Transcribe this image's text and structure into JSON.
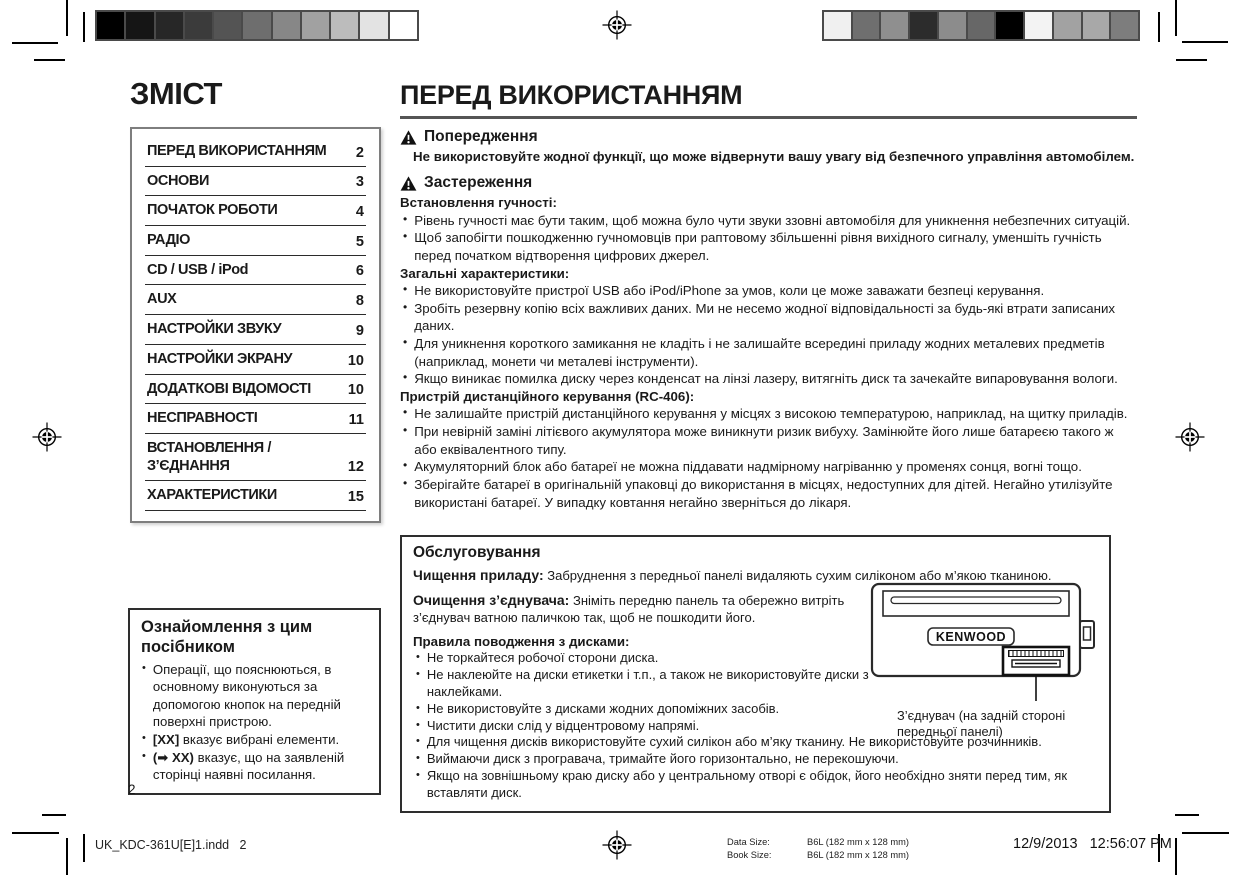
{
  "toc": {
    "title": "ЗМІСТ",
    "items": [
      {
        "label": "ПЕРЕД ВИКОРИСТАННЯМ",
        "page": "2"
      },
      {
        "label": "ОСНОВИ",
        "page": "3"
      },
      {
        "label": "ПОЧАТОК РОБОТИ",
        "page": "4"
      },
      {
        "label": "РАДІО",
        "page": "5"
      },
      {
        "label": "CD / USB / iPod",
        "page": "6"
      },
      {
        "label": "AUX",
        "page": "8"
      },
      {
        "label": "НАСТРОЙКИ ЗВУКУ",
        "page": "9"
      },
      {
        "label": "НАСТРОЙКИ ЭКРАНУ",
        "page": "10"
      },
      {
        "label": "ДОДАТКОВІ ВІДОМОСТІ",
        "page": "10"
      },
      {
        "label": "НЕСПРАВНОСТІ",
        "page": "11"
      },
      {
        "label": "ВСТАНОВЛЕННЯ /\nЗ’ЄДНАННЯ",
        "page": "12"
      },
      {
        "label": "ХАРАКТЕРИСТИКИ",
        "page": "15"
      }
    ]
  },
  "main": {
    "title": "ПЕРЕД ВИКОРИСТАННЯМ",
    "warning": {
      "heading": "Попередження",
      "body": "Не використовуйте жодної функції, що може відвернути вашу увагу від безпечного управління автомобілем."
    },
    "caution": {
      "heading": "Застереження",
      "groups": [
        {
          "heading": "Встановлення гучності:",
          "items": [
            "Рівень гучності має бути таким, щоб можна було чути звуки ззовні автомобіля для уникнення небезпечних ситуацій.",
            "Щоб запобігти пошкодженню гучномовців при раптовому збільшенні рівня вихідного сигналу, уменшіть гучність перед початком відтворення цифрових джерел."
          ]
        },
        {
          "heading": "Загальні характеристики:",
          "items": [
            "Не використовуйте пристрої USB або iPod/iPhone за умов, коли це може заважати безпеці керування.",
            "Зробіть резервну копію всіх важливих даних. Ми не несемо жодної відповідальності за будь-які втрати записаних даних.",
            "Для уникнення короткого замикання не кладіть і не залишайте всередині приладу жодних металевих предметів (наприклад, монети чи металеві інструменти).",
            "Якщо виникає помилка диску через конденсат на лінзі лазеру, витягніть диск та зачекайте випаровування вологи."
          ]
        },
        {
          "heading": "Пристрій дистанційного керування (RC-406):",
          "items": [
            "Не залишайте пристрій дистанційного керування у місцях з високою температурою, наприклад, на щитку приладів.",
            "При невірній заміні літієвого акумулятора може виникнути ризик вибуху. Замінюйте його лише батареєю такого ж або еквівалентного типу.",
            "Акумуляторний блок або батареї не можна піддавати надмірному нагріванню у променях сонця, вогні тощо.",
            "Зберігайте батареї в оригінальній упаковці до використання в місцях, недоступних для дітей. Негайно утилізуйте використані батареї. У випадку ковтання негайно зверніться до лікаря."
          ]
        }
      ]
    }
  },
  "maintenance": {
    "title": "Обслуговування",
    "cleaning_label": "Чищення приладу:",
    "cleaning_text": "Забруднення з передньої панелі видаляють сухим силіконом або м’якою тканиною.",
    "connector_label": "Очищення з’єднувача:",
    "connector_text": "Зніміть передню панель та обережно витріть з’єднувач ватною паличкою так, щоб не пошкодити його.",
    "discs_heading": "Правила поводження з дисками:",
    "disc_items_left": [
      "Не торкайтеся робочої сторони диска.",
      "Не наклеюйте на диски етикетки і т.п., а також не використовуйте диски з наклейками.",
      "Не використовуйте з дисками жодних допоміжних засобів.",
      "Чистити диски слід у відцентровому напрямі."
    ],
    "disc_items_full": [
      "Для чищення дисків використовуйте сухий силікон або м’яку тканину. Не використовуйте розчинників.",
      "Виймаючи диск з програвача, тримайте його горизонтально, не перекошуючи.",
      "Якщо на зовнішньому краю диску або у центральному отворі є обідок, його необхідно зняти перед тим, як вставляти диск."
    ],
    "device_brand": "KENWOOD",
    "device_caption": "З’єднувач (на задній стороні передньої панелі)"
  },
  "about_manual": {
    "title": "Ознайомлення з цим посібником",
    "items": [
      {
        "prefix": "",
        "text": "Операції, що пояснюються, в основному виконуються за допомогою кнопок на передній поверхні пристрою."
      },
      {
        "prefix": "[XX]",
        "text": "вказує вибрані елементи."
      },
      {
        "prefix": "(➡ XX)",
        "text": "вказує, що на заявленій сторінці наявні посилання."
      }
    ]
  },
  "page_number": "2",
  "footer": {
    "file_label": "UK_KDC-361U[E]1.indd   2",
    "data_size_label": "Data Size:",
    "data_size_value": "B6L (182 mm x 128 mm)",
    "book_size_label": "Book Size:",
    "book_size_value": "B6L (182 mm x 128 mm)",
    "datetime": "12/9/2013   12:56:07 PM"
  },
  "print_marks": {
    "left_bar_colors": [
      "#000000",
      "#151515",
      "#272727",
      "#3b3b3b",
      "#545454",
      "#6e6e6e",
      "#878787",
      "#a1a1a1",
      "#bcbcbc",
      "#e3e3e3",
      "#ffffff"
    ],
    "right_bar_colors": [
      "#f0f0f0",
      "#6f6f6f",
      "#8f8f8f",
      "#2c2c2c",
      "#8c8c8c",
      "#676767",
      "#000000",
      "#f3f3f3",
      "#a2a2a2",
      "#a8a8a8",
      "#7d7d7d"
    ]
  }
}
